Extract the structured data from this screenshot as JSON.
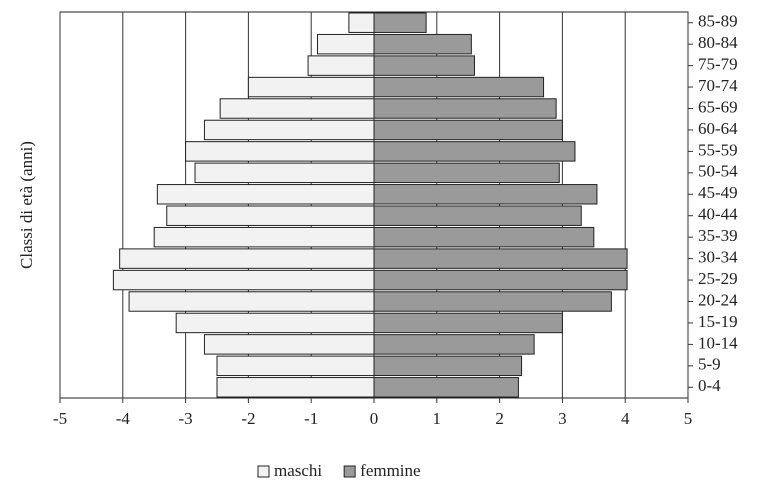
{
  "chart_data": {
    "type": "pyramid",
    "y_label": "Classi di età (anni)",
    "categories": [
      "0-4",
      "5-9",
      "10-14",
      "15-19",
      "20-24",
      "25-29",
      "30-34",
      "35-39",
      "40-44",
      "45-49",
      "50-54",
      "55-59",
      "60-64",
      "65-69",
      "70-74",
      "75-79",
      "80-84",
      "85-89"
    ],
    "series": [
      {
        "name": "maschi",
        "color": "#f2f2f2",
        "values": [
          -2.5,
          -2.5,
          -2.7,
          -3.15,
          -3.9,
          -4.15,
          -4.05,
          -3.5,
          -3.3,
          -3.45,
          -2.85,
          -3.0,
          -2.7,
          -2.45,
          -2.0,
          -1.05,
          -0.9,
          -0.4
        ]
      },
      {
        "name": "femmine",
        "color": "#9a9a9a",
        "values": [
          2.3,
          2.35,
          2.55,
          3.0,
          3.78,
          4.03,
          4.03,
          3.5,
          3.3,
          3.55,
          2.95,
          3.2,
          3.0,
          2.9,
          2.7,
          1.6,
          1.55,
          0.83
        ]
      }
    ],
    "xlim": [
      -5,
      5
    ],
    "xticks": [
      -5,
      -4,
      -3,
      -2,
      -1,
      0,
      1,
      2,
      3,
      4,
      5
    ],
    "grid": true
  }
}
